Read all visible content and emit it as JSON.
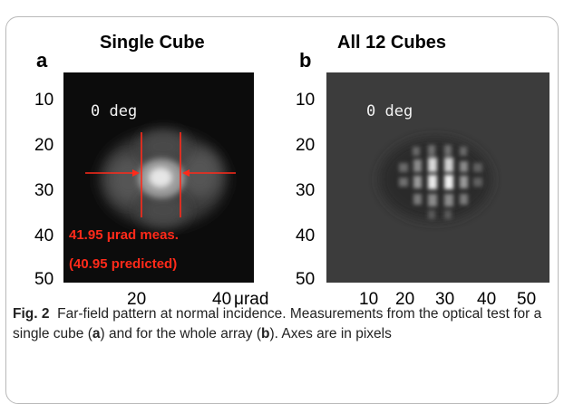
{
  "panel_a": {
    "title": "Single Cube",
    "letter": "a",
    "y_ticks": [
      "10",
      "20",
      "30",
      "40",
      "50"
    ],
    "x_ticks": [
      "20",
      "40"
    ],
    "x_unit": "μrad",
    "overlay": "0 deg",
    "annotation_line1": "41.95 μrad meas.",
    "annotation_line2": "(40.95 predicted)",
    "annotation_color": "#ff2a1a"
  },
  "panel_b": {
    "title": "All 12 Cubes",
    "letter": "b",
    "y_ticks": [
      "10",
      "20",
      "30",
      "40",
      "50"
    ],
    "x_ticks": [
      "10",
      "20",
      "30",
      "40",
      "50"
    ],
    "overlay": "0 deg"
  },
  "caption": {
    "label": "Fig. 2",
    "text_1": "Far-field pattern at normal incidence. Measurements from the optical test for a single cube (",
    "ref_a": "a",
    "text_2": ") and for the whole array (",
    "ref_b": "b",
    "text_3": "). Axes are in pixels"
  }
}
